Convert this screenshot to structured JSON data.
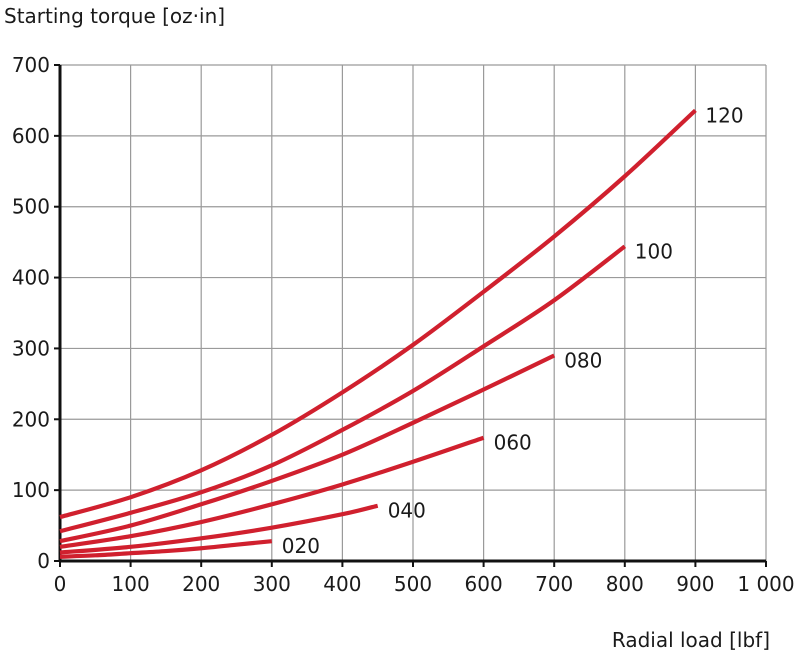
{
  "chart_data": {
    "type": "line",
    "title": "",
    "ylabel": "Starting torque [oz·in]",
    "xlabel": "Radial load [lbf]",
    "xlim": [
      0,
      1000
    ],
    "ylim": [
      0,
      700
    ],
    "grid": true,
    "x_ticks": [
      0,
      100,
      200,
      300,
      400,
      500,
      600,
      700,
      800,
      900,
      1000
    ],
    "x_tick_labels": [
      "0",
      "100",
      "200",
      "300",
      "400",
      "500",
      "600",
      "700",
      "800",
      "900",
      "1 000"
    ],
    "y_ticks": [
      0,
      100,
      200,
      300,
      400,
      500,
      600,
      700
    ],
    "y_tick_labels": [
      "0",
      "100",
      "200",
      "300",
      "400",
      "500",
      "600",
      "700"
    ],
    "line_color": "#d0202e",
    "series": [
      {
        "name": "020",
        "x": [
          0,
          50,
          100,
          150,
          200,
          250,
          300
        ],
        "y": [
          6,
          8,
          11,
          14,
          18,
          23,
          28
        ]
      },
      {
        "name": "040",
        "x": [
          0,
          100,
          200,
          300,
          400,
          450
        ],
        "y": [
          12,
          20,
          32,
          47,
          66,
          78
        ]
      },
      {
        "name": "060",
        "x": [
          0,
          100,
          200,
          300,
          400,
          500,
          600
        ],
        "y": [
          20,
          35,
          55,
          80,
          108,
          140,
          174
        ]
      },
      {
        "name": "080",
        "x": [
          0,
          100,
          200,
          300,
          400,
          500,
          600,
          700
        ],
        "y": [
          28,
          50,
          80,
          113,
          150,
          195,
          242,
          290
        ]
      },
      {
        "name": "100",
        "x": [
          0,
          100,
          200,
          300,
          400,
          500,
          600,
          700,
          800
        ],
        "y": [
          42,
          68,
          97,
          135,
          185,
          240,
          303,
          368,
          444
        ]
      },
      {
        "name": "120",
        "x": [
          0,
          100,
          200,
          300,
          400,
          500,
          600,
          700,
          800,
          900
        ],
        "y": [
          62,
          90,
          128,
          178,
          238,
          305,
          380,
          458,
          543,
          636
        ]
      }
    ]
  }
}
